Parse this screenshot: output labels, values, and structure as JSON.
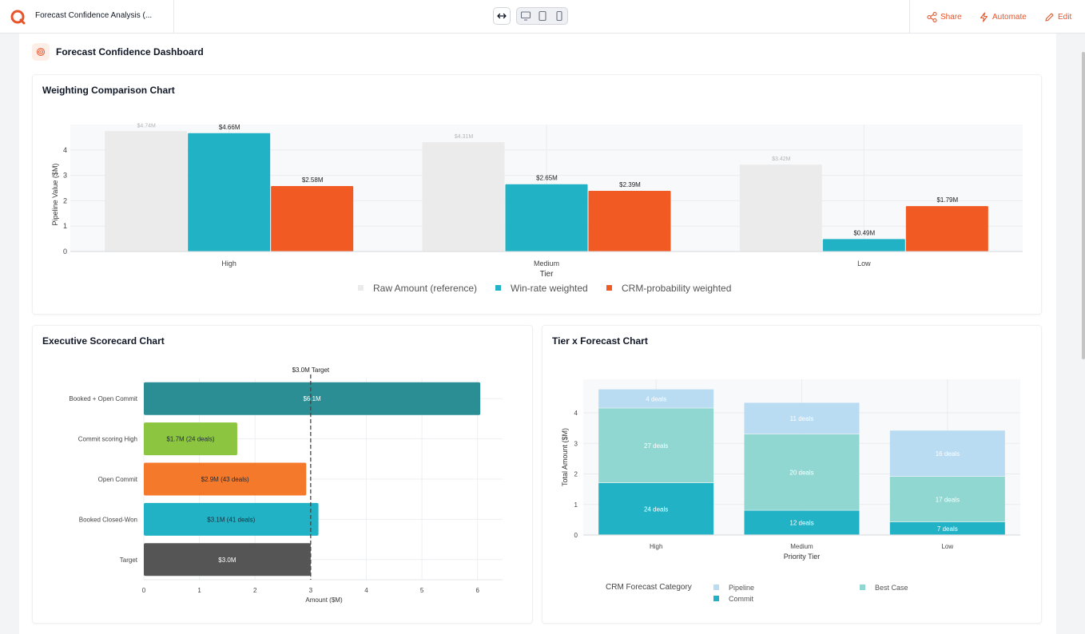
{
  "app": {
    "title": "Forecast Confidence Analysis (...",
    "actions": {
      "share": "Share",
      "automate": "Automate",
      "edit": "Edit"
    }
  },
  "dashboard": {
    "title": "Forecast Confidence Dashboard"
  },
  "colors": {
    "accent": "#e8542a",
    "raw": "#ebebeb",
    "teal": "#22b2c5",
    "orange": "#f25a24"
  },
  "charts": {
    "weighting": {
      "title": "Weighting Comparison Chart"
    },
    "scorecard": {
      "title": "Executive Scorecard Chart"
    },
    "tier": {
      "title": "Tier x Forecast Chart"
    }
  },
  "chart_data": [
    {
      "type": "bar",
      "title": "Weighting Comparison Chart",
      "xlabel": "Tier",
      "ylabel": "Pipeline Value ($M)",
      "categories": [
        "High",
        "Medium",
        "Low"
      ],
      "ylim": [
        0,
        5
      ],
      "yticks": [
        0,
        1,
        2,
        3,
        4
      ],
      "grid": true,
      "legend": "bottom",
      "series": [
        {
          "name": "Raw Amount (reference)",
          "color": "#ebebeb",
          "values": [
            4.74,
            4.31,
            3.42
          ],
          "labels": [
            "$4.74M",
            "$4.31M",
            "$3.42M"
          ]
        },
        {
          "name": "Win-rate weighted",
          "color": "#22b2c5",
          "values": [
            4.66,
            2.65,
            0.49
          ],
          "labels": [
            "$4.66M",
            "$2.65M",
            "$0.49M"
          ]
        },
        {
          "name": "CRM-probability weighted",
          "color": "#f25a24",
          "values": [
            2.58,
            2.39,
            1.79
          ],
          "labels": [
            "$2.58M",
            "$2.39M",
            "$1.79M"
          ]
        }
      ]
    },
    {
      "type": "bar",
      "orientation": "horizontal",
      "title": "Executive Scorecard Chart",
      "xlabel": "Amount ($M)",
      "ylabel": "",
      "xlim": [
        0,
        6.45
      ],
      "xticks": [
        0,
        1,
        2,
        3,
        4,
        5,
        6
      ],
      "grid": true,
      "target": {
        "value": 3.0,
        "label": "$3.0M Target"
      },
      "bars": [
        {
          "category": "Booked + Open Commit",
          "value": 6.05,
          "label": "$6.1M",
          "color": "#2a8e94",
          "label_color": "#ffffff"
        },
        {
          "category": "Commit scoring High",
          "value": 1.68,
          "label": "$1.7M (24 deals)",
          "color": "#8cc640",
          "label_color": "#1f2937"
        },
        {
          "category": "Open Commit",
          "value": 2.92,
          "label": "$2.9M (43 deals)",
          "color": "#f5792a",
          "label_color": "#1f2937"
        },
        {
          "category": "Booked Closed-Won",
          "value": 3.14,
          "label": "$3.1M (41 deals)",
          "color": "#22b2c5",
          "label_color": "#1f2937"
        },
        {
          "category": "Target",
          "value": 3.0,
          "label": "$3.0M",
          "color": "#555555",
          "label_color": "#ffffff"
        }
      ]
    },
    {
      "type": "bar",
      "stacked": true,
      "title": "Tier x Forecast Chart",
      "xlabel": "Priority Tier",
      "ylabel": "Total Amount ($M)",
      "categories": [
        "High",
        "Medium",
        "Low"
      ],
      "ylim": [
        0,
        5.1
      ],
      "yticks": [
        0,
        1,
        2,
        3,
        4
      ],
      "grid": true,
      "legend": {
        "title": "CRM Forecast Category",
        "placement": "bottom"
      },
      "series": [
        {
          "name": "Commit",
          "color": "#22b2c5",
          "values": [
            1.7,
            0.8,
            0.42
          ],
          "labels": [
            "24 deals",
            "12 deals",
            "7 deals"
          ]
        },
        {
          "name": "Best Case",
          "color": "#91d7d1",
          "values": [
            2.45,
            2.5,
            1.49
          ],
          "labels": [
            "27 deals",
            "20 deals",
            "17 deals"
          ]
        },
        {
          "name": "Pipeline",
          "color": "#b9dcf3",
          "values": [
            0.62,
            1.03,
            1.51
          ],
          "labels": [
            "4 deals",
            "11 deals",
            "16 deals"
          ]
        }
      ]
    }
  ]
}
